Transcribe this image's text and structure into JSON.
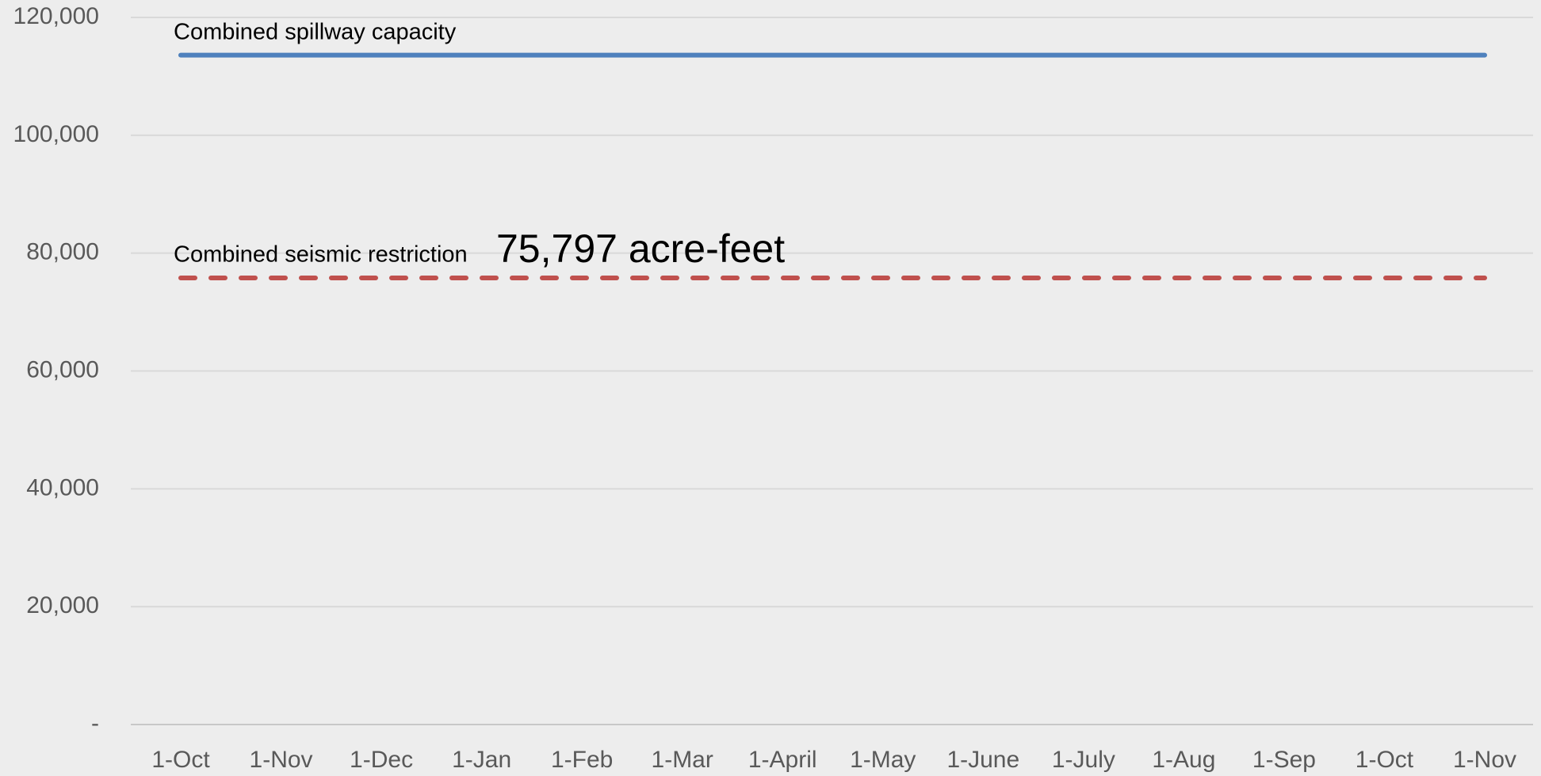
{
  "chart_data": {
    "type": "line",
    "annotation": "75,797 acre-feet",
    "categories": [
      "1-Oct",
      "1-Nov",
      "1-Dec",
      "1-Jan",
      "1-Feb",
      "1-Mar",
      "1-April",
      "1-May",
      "1-June",
      "1-July",
      "1-Aug",
      "1-Sep",
      "1-Oct",
      "1-Nov"
    ],
    "series": [
      {
        "name": "Combined spillway capacity",
        "color": "#4f81bd",
        "dashed": false,
        "values": [
          113600,
          113600,
          113600,
          113600,
          113600,
          113600,
          113600,
          113600,
          113600,
          113600,
          113600,
          113600,
          113600,
          113600
        ]
      },
      {
        "name": "Combined seismic restriction",
        "color": "#c0504d",
        "dashed": true,
        "values": [
          75797,
          75797,
          75797,
          75797,
          75797,
          75797,
          75797,
          75797,
          75797,
          75797,
          75797,
          75797,
          75797,
          75797
        ]
      }
    ],
    "ylim": [
      0,
      120000
    ],
    "yticks": [
      {
        "value": 0,
        "label": "-"
      },
      {
        "value": 20000,
        "label": "20,000"
      },
      {
        "value": 40000,
        "label": "40,000"
      },
      {
        "value": 60000,
        "label": "60,000"
      },
      {
        "value": 80000,
        "label": "80,000"
      },
      {
        "value": 100000,
        "label": "100,000"
      },
      {
        "value": 120000,
        "label": "120,000"
      }
    ],
    "grid": true
  }
}
